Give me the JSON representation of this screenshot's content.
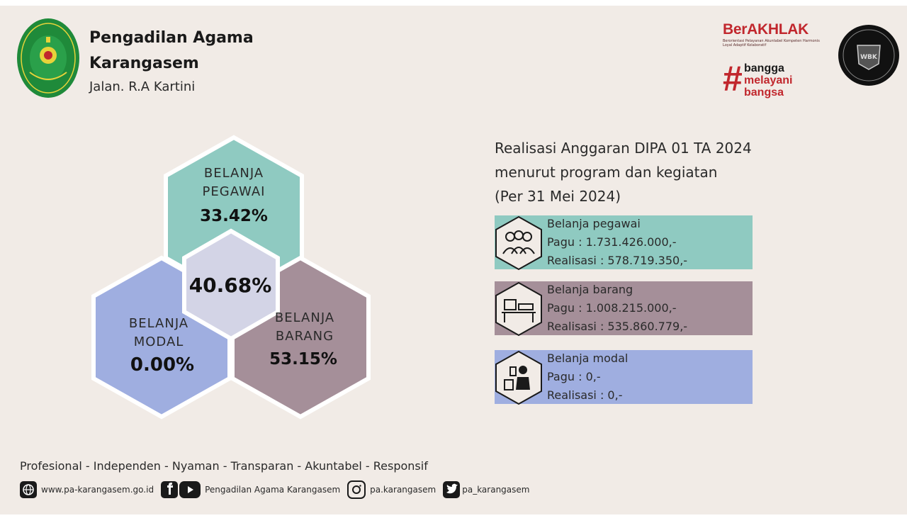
{
  "header": {
    "org_name_line1": "Pengadilan Agama",
    "org_name_line2": "Karangasem",
    "address": "Jalan. R.A Kartini",
    "berakhlak": {
      "brand": "BerAKHLAK",
      "subtitle": "Berorientasi Pelayanan Akuntabel Kompeten Harmonis Loyal Adaptif Kolaboratif",
      "tag1": "bangga",
      "tag2": "melayani",
      "tag3": "bangsa"
    }
  },
  "hexagons": {
    "pegawai_label1": "BELANJA",
    "pegawai_label2": "PEGAWAI",
    "pegawai_value": "33.42%",
    "center_value": "40.68%",
    "modal_label1": "BELANJA",
    "modal_label2": "MODAL",
    "modal_value": "0.00%",
    "barang_label1": "BELANJA",
    "barang_label2": "BARANG",
    "barang_value": "53.15%"
  },
  "panel": {
    "title_line1": "Realisasi Anggaran DIPA 01 TA 2024",
    "title_line2": "menurut program dan kegiatan",
    "title_line3": "(Per 31 Mei 2024)",
    "cards": [
      {
        "name": "Belanja pegawai",
        "pagu": "Pagu : 1.731.426.000,-",
        "realisasi": "Realisasi : 578.719.350,-",
        "color": "#8fcac1",
        "icon": "people-group-icon"
      },
      {
        "name": "Belanja barang",
        "pagu": "Pagu : 1.008.215.000,-",
        "realisasi": "Realisasi : 535.860.779,-",
        "color": "#a58f99",
        "icon": "office-desk-icon"
      },
      {
        "name": "Belanja modal",
        "pagu": "Pagu : 0,-",
        "realisasi": "Realisasi : 0,-",
        "color": "#9faee0",
        "icon": "person-building-icon"
      }
    ]
  },
  "colors": {
    "background": "#f1ebe6",
    "pegawai": "#8fcac1",
    "barang": "#a58f99",
    "modal": "#9faee0",
    "center": "#d3d4e6",
    "brand_red": "#c1272d"
  },
  "footer": {
    "values": "Profesional - Independen - Nyaman - Transparan - Akuntabel - Responsif",
    "website": "www.pa-karangasem.go.id",
    "fb_yt": "Pengadilan Agama Karangasem",
    "instagram": "pa.karangasem",
    "twitter": "pa_karangasem"
  }
}
